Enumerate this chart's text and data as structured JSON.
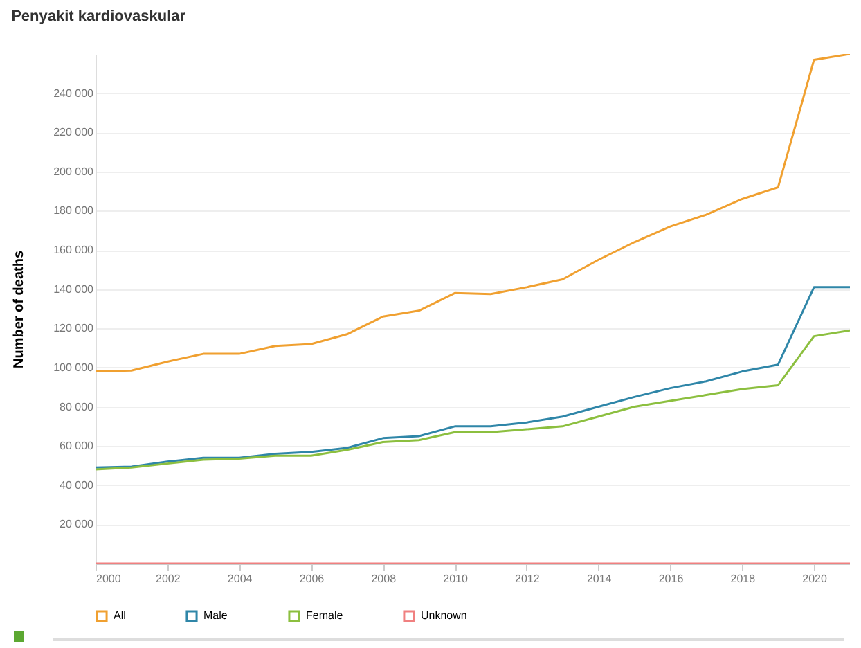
{
  "chart_data": {
    "type": "line",
    "title": "Penyakit kardiovaskular",
    "ylabel": "Number of deaths",
    "x": [
      2000,
      2001,
      2002,
      2003,
      2004,
      2005,
      2006,
      2007,
      2008,
      2009,
      2010,
      2011,
      2012,
      2013,
      2014,
      2015,
      2016,
      2017,
      2018,
      2019,
      2020,
      2021
    ],
    "series": [
      {
        "name": "All",
        "color": "#f0a030",
        "values": [
          98000,
          98500,
          103000,
          107000,
          107000,
          111000,
          112000,
          117000,
          126000,
          129000,
          138000,
          137500,
          141000,
          145000,
          155000,
          164000,
          172000,
          178000,
          186000,
          192000,
          257000,
          260000
        ]
      },
      {
        "name": "Male",
        "color": "#2f86a8",
        "values": [
          49000,
          49500,
          52000,
          54000,
          54000,
          56000,
          57000,
          59000,
          64000,
          65000,
          70000,
          70000,
          72000,
          75000,
          80000,
          85000,
          89500,
          93000,
          98000,
          101500,
          141000,
          141000
        ]
      },
      {
        "name": "Female",
        "color": "#8cbf3f",
        "values": [
          48000,
          49000,
          51000,
          53000,
          53500,
          55000,
          55000,
          58000,
          62000,
          63000,
          67000,
          67000,
          68500,
          70000,
          75000,
          80000,
          83000,
          86000,
          89000,
          91000,
          116000,
          119000
        ]
      },
      {
        "name": "Unknown",
        "color": "#f08080",
        "values": [
          0,
          0,
          0,
          0,
          0,
          0,
          0,
          0,
          0,
          0,
          0,
          0,
          0,
          0,
          0,
          0,
          0,
          0,
          0,
          0,
          0,
          0
        ]
      }
    ],
    "xlim": [
      2000,
      2021
    ],
    "xticks": [
      2000,
      2002,
      2004,
      2006,
      2008,
      2010,
      2012,
      2014,
      2016,
      2018,
      2020
    ],
    "ylim": [
      0,
      260000
    ],
    "yticks": [
      {
        "value": 20000,
        "label": "20 000"
      },
      {
        "value": 40000,
        "label": "40 000"
      },
      {
        "value": 60000,
        "label": "60 000"
      },
      {
        "value": 80000,
        "label": "80 000"
      },
      {
        "value": 100000,
        "label": "100 000"
      },
      {
        "value": 120000,
        "label": "120 000"
      },
      {
        "value": 140000,
        "label": "140 000"
      },
      {
        "value": 160000,
        "label": "160 000"
      },
      {
        "value": 180000,
        "label": "180 000"
      },
      {
        "value": 200000,
        "label": "200 000"
      },
      {
        "value": 220000,
        "label": "220 000"
      },
      {
        "value": 240000,
        "label": "240 000"
      }
    ],
    "grid": "y",
    "legend": "bottom",
    "marker": "none",
    "line_style": "solid"
  }
}
